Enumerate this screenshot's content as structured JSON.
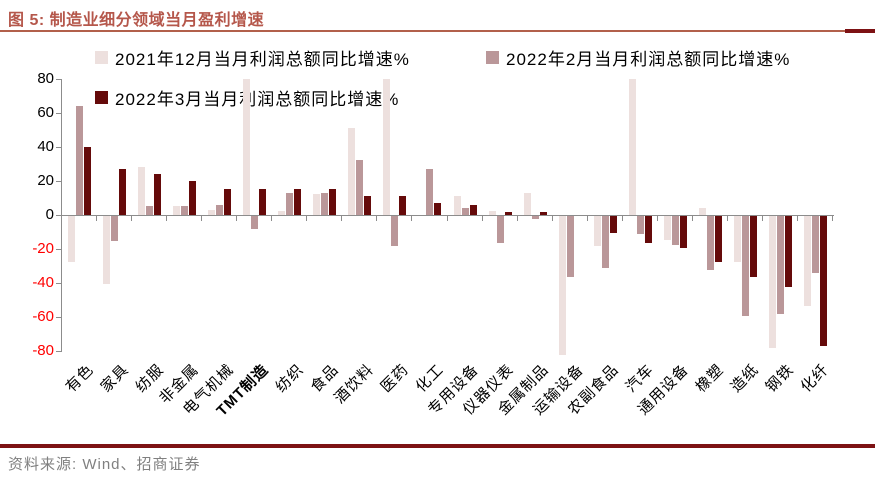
{
  "title": "图 5: 制造业细分领域当月盈利增速",
  "source": "资料来源: Wind、招商证券",
  "colors": {
    "title": "#B5574B",
    "title_rule": "#B2604B",
    "footer_rule": "#7D1214",
    "axis": "#8C8C8C",
    "negative_tick_label": "#FF0000",
    "source_text": "#808080"
  },
  "legend": [
    {
      "label": "2021年12月当月利润总额同比增速%",
      "color": "#EDE0DE"
    },
    {
      "label": "2022年2月当月利润总额同比增速%",
      "color": "#BA9799"
    },
    {
      "label": "2022年3月当月利润总额同比增速%",
      "color": "#650A0A"
    }
  ],
  "chart_data": {
    "type": "bar",
    "title": "图 5: 制造业细分领域当月盈利增速",
    "categories": [
      "有色",
      "家具",
      "纺服",
      "非金属",
      "电气机械",
      "TMT制造",
      "纺织",
      "食品",
      "酒饮料",
      "医药",
      "化工",
      "专用设备",
      "仪器仪表",
      "金属制品",
      "运输设备",
      "农副食品",
      "汽车",
      "通用设备",
      "橡塑",
      "造纸",
      "钢铁",
      "化纤"
    ],
    "bold_category": "TMT制造",
    "series": [
      {
        "name": "2021年12月当月利润总额同比增速%",
        "color": "#EDE0DE",
        "values": [
          -27,
          -40,
          28,
          5,
          3,
          80,
          2,
          12,
          51,
          80,
          0,
          11,
          2,
          13,
          -82,
          -18,
          80,
          -14,
          4,
          -27,
          -78,
          -53
        ]
      },
      {
        "name": "2022年2月当月利润总额同比增速%",
        "color": "#BA9799",
        "values": [
          64,
          -15,
          5,
          5,
          6,
          -8,
          13,
          13,
          32,
          -18,
          27,
          4,
          -16,
          -2,
          -36,
          -31,
          -11,
          -17,
          -32,
          -59,
          -58,
          -34
        ]
      },
      {
        "name": "2022年3月当月利润总额同比增速%",
        "color": "#650A0A",
        "values": [
          40,
          27,
          24,
          20,
          15,
          15,
          15,
          15,
          11,
          11,
          7,
          6,
          1.5,
          1.5,
          0,
          -10,
          -16,
          -19,
          -27,
          -36,
          -42,
          -77
        ]
      }
    ],
    "xlabel": "",
    "ylabel": "",
    "ylim": [
      -80,
      80
    ],
    "yticks": [
      80,
      60,
      40,
      20,
      0,
      -20,
      -40,
      -60,
      -80
    ],
    "grid": false,
    "legend_position": "top"
  }
}
